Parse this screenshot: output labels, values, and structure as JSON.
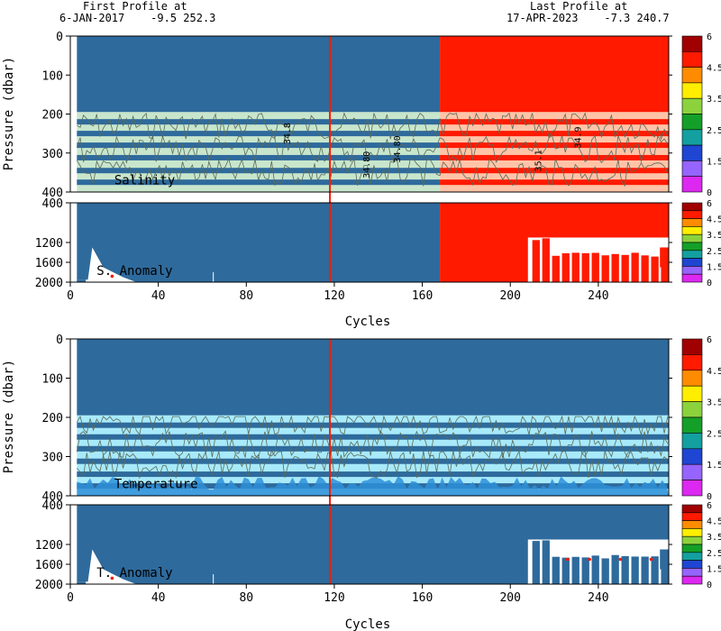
{
  "header": {
    "first_label": "First Profile at",
    "first_value": "6-JAN-2017    -9.5 252.3",
    "last_label": "Last Profile at",
    "last_value": "17-APR-2023    -7.3 240.7"
  },
  "colors": {
    "deep_blue": "#2e6a9c",
    "pale_green": "#c8e6cc",
    "light_cyan": "#a8eafa",
    "red": "#ff1a00",
    "salmon": "#ffc4a8",
    "mid_blue": "#2e8fd8",
    "contour": "#5a6a5a"
  },
  "colorbar": {
    "ticks": [
      "6",
      "4.5",
      "3.5",
      "2.5",
      "1.5",
      "0"
    ],
    "colors": [
      "#a00000",
      "#ff1a00",
      "#ff8c00",
      "#ffee00",
      "#8cd23c",
      "#14a028",
      "#14a0a0",
      "#1e46d2",
      "#9664ff",
      "#dc28f0"
    ]
  },
  "chart_data": [
    {
      "type": "heatmap",
      "label": "Salinity",
      "ylabel": "Pressure (dbar)",
      "xlim": [
        0,
        272
      ],
      "ylim": [
        400,
        0
      ],
      "yticks": [
        "0",
        "100",
        "200",
        "300",
        "400"
      ],
      "xticks": [],
      "contour_labels": [
        "34.8",
        "34.80",
        "34.80",
        "34.9",
        "35.1"
      ],
      "regions": [
        {
          "x0": 3,
          "x1": 168,
          "p0": 0,
          "p1": 195,
          "flag": "deep_blue"
        },
        {
          "x0": 168,
          "x1": 272,
          "p0": 0,
          "p1": 195,
          "flag": "red"
        },
        {
          "x0": 3,
          "x1": 168,
          "p0": 195,
          "p1": 400,
          "flag": "pale_green"
        },
        {
          "x0": 168,
          "x1": 272,
          "p0": 195,
          "p1": 400,
          "flag": "salmon"
        }
      ],
      "marked_cycle": 118
    },
    {
      "type": "heatmap",
      "label": "S. Anomaly",
      "ylabel": "",
      "xlim": [
        0,
        272
      ],
      "ylim": [
        2000,
        400
      ],
      "yticks": [
        "400",
        "1200",
        "1600",
        "2000"
      ],
      "xticks": [
        "0",
        "40",
        "80",
        "120",
        "160",
        "200",
        "240"
      ],
      "xlabel": "Cycles",
      "regions": [
        {
          "x0": 3,
          "x1": 168,
          "p0": 400,
          "p1": 2000,
          "flag": "deep_blue"
        },
        {
          "x0": 168,
          "x1": 272,
          "p0": 400,
          "p1": 2000,
          "flag": "red"
        }
      ],
      "marked_cycle": 118
    },
    {
      "type": "heatmap",
      "label": "Temperature",
      "ylabel": "Pressure (dbar)",
      "xlim": [
        0,
        272
      ],
      "ylim": [
        400,
        0
      ],
      "yticks": [
        "0",
        "100",
        "200",
        "300",
        "400"
      ],
      "xticks": [],
      "regions": [
        {
          "x0": 3,
          "x1": 272,
          "p0": 0,
          "p1": 195,
          "flag": "deep_blue"
        },
        {
          "x0": 3,
          "x1": 272,
          "p0": 195,
          "p1": 400,
          "flag": "light_cyan"
        }
      ],
      "marked_cycle": 118
    },
    {
      "type": "heatmap",
      "label": "T. Anomaly",
      "ylabel": "",
      "xlim": [
        0,
        272
      ],
      "ylim": [
        2000,
        400
      ],
      "yticks": [
        "400",
        "1200",
        "1600",
        "2000"
      ],
      "xticks": [
        "0",
        "40",
        "80",
        "120",
        "160",
        "200",
        "240"
      ],
      "xlabel": "Cycles",
      "regions": [
        {
          "x0": 3,
          "x1": 272,
          "p0": 400,
          "p1": 2000,
          "flag": "deep_blue"
        }
      ],
      "marked_cycle": 118
    }
  ]
}
